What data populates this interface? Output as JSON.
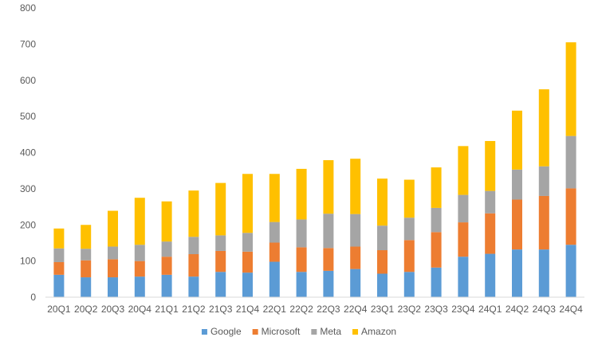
{
  "chart_data": {
    "type": "bar",
    "stacked": true,
    "categories": [
      "20Q1",
      "20Q2",
      "20Q3",
      "20Q4",
      "21Q1",
      "21Q2",
      "21Q3",
      "21Q4",
      "22Q1",
      "22Q2",
      "22Q3",
      "22Q4",
      "23Q1",
      "23Q2",
      "23Q3",
      "23Q4",
      "24Q1",
      "24Q2",
      "24Q3",
      "24Q4"
    ],
    "series": [
      {
        "name": "Google",
        "color": "#5B9BD5",
        "values": [
          62,
          55,
          55,
          57,
          62,
          57,
          70,
          68,
          98,
          70,
          73,
          78,
          65,
          70,
          82,
          112,
          120,
          132,
          132,
          145
        ]
      },
      {
        "name": "Microsoft",
        "color": "#ED7D31",
        "values": [
          35,
          47,
          50,
          43,
          50,
          62,
          58,
          58,
          53,
          68,
          63,
          62,
          65,
          88,
          98,
          95,
          112,
          138,
          148,
          156
        ]
      },
      {
        "name": "Meta",
        "color": "#A5A5A5",
        "values": [
          38,
          32,
          35,
          45,
          42,
          48,
          43,
          52,
          57,
          77,
          95,
          90,
          68,
          62,
          67,
          76,
          62,
          83,
          82,
          145
        ]
      },
      {
        "name": "Amazon",
        "color": "#FFC000",
        "values": [
          55,
          66,
          99,
          130,
          111,
          128,
          145,
          163,
          133,
          140,
          148,
          153,
          130,
          105,
          112,
          135,
          138,
          163,
          213,
          259
        ]
      }
    ],
    "ylim": [
      0,
      800
    ],
    "yticks": [
      0,
      100,
      200,
      300,
      400,
      500,
      600,
      700,
      800
    ],
    "title": "",
    "xlabel": "",
    "ylabel": "",
    "legend_position": "bottom-center",
    "grid": false
  }
}
